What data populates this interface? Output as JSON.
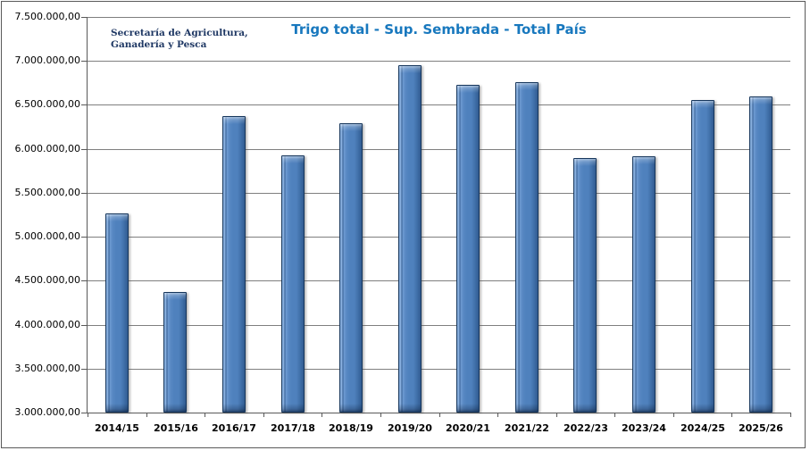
{
  "header": {
    "org_line1": "Secretaría de Agricultura,",
    "org_line2": "Ganadería y Pesca",
    "title": "Trigo total - Sup. Sembrada - Total País"
  },
  "colors": {
    "title_text": "#1878BE",
    "org_text": "#1F3864",
    "bar_fill": "#4F81BD",
    "bar_edge": "#16365C",
    "bar_highlight": "#85ACDB",
    "bar_shade": "#2B5183",
    "gridline": "#7F7F7F",
    "axis_line": "#595959",
    "frame_border": "#595959",
    "label_text": "#000000"
  },
  "chart_data": {
    "type": "bar",
    "title": "Trigo total - Sup. Sembrada - Total País",
    "xlabel": "",
    "ylabel": "",
    "categories": [
      "2014/15",
      "2015/16",
      "2016/17",
      "2017/18",
      "2018/19",
      "2019/20",
      "2020/21",
      "2021/22",
      "2022/23",
      "2023/24",
      "2024/25",
      "2025/26"
    ],
    "values": [
      5270000,
      4370000,
      6370000,
      5925000,
      6290000,
      6950000,
      6730000,
      6755000,
      5895000,
      5915000,
      6560000,
      6600000
    ],
    "ylim": [
      3000000,
      7500000
    ],
    "y_tick_step": 500000,
    "y_ticks": [
      {
        "value": 7500000,
        "label": "7.500.000,00"
      },
      {
        "value": 7000000,
        "label": "7.000.000,00"
      },
      {
        "value": 6500000,
        "label": "6.500.000,00"
      },
      {
        "value": 6000000,
        "label": "6.000.000,00"
      },
      {
        "value": 5500000,
        "label": "5.500.000,00"
      },
      {
        "value": 5000000,
        "label": "5.000.000,00"
      },
      {
        "value": 4500000,
        "label": "4.500.000,00"
      },
      {
        "value": 4000000,
        "label": "4.000.000,00"
      },
      {
        "value": 3500000,
        "label": "3.500.000,00"
      },
      {
        "value": 3000000,
        "label": "3.000.000,00"
      }
    ],
    "grid": true,
    "legend": false,
    "bar_style": "3d-bevel"
  }
}
